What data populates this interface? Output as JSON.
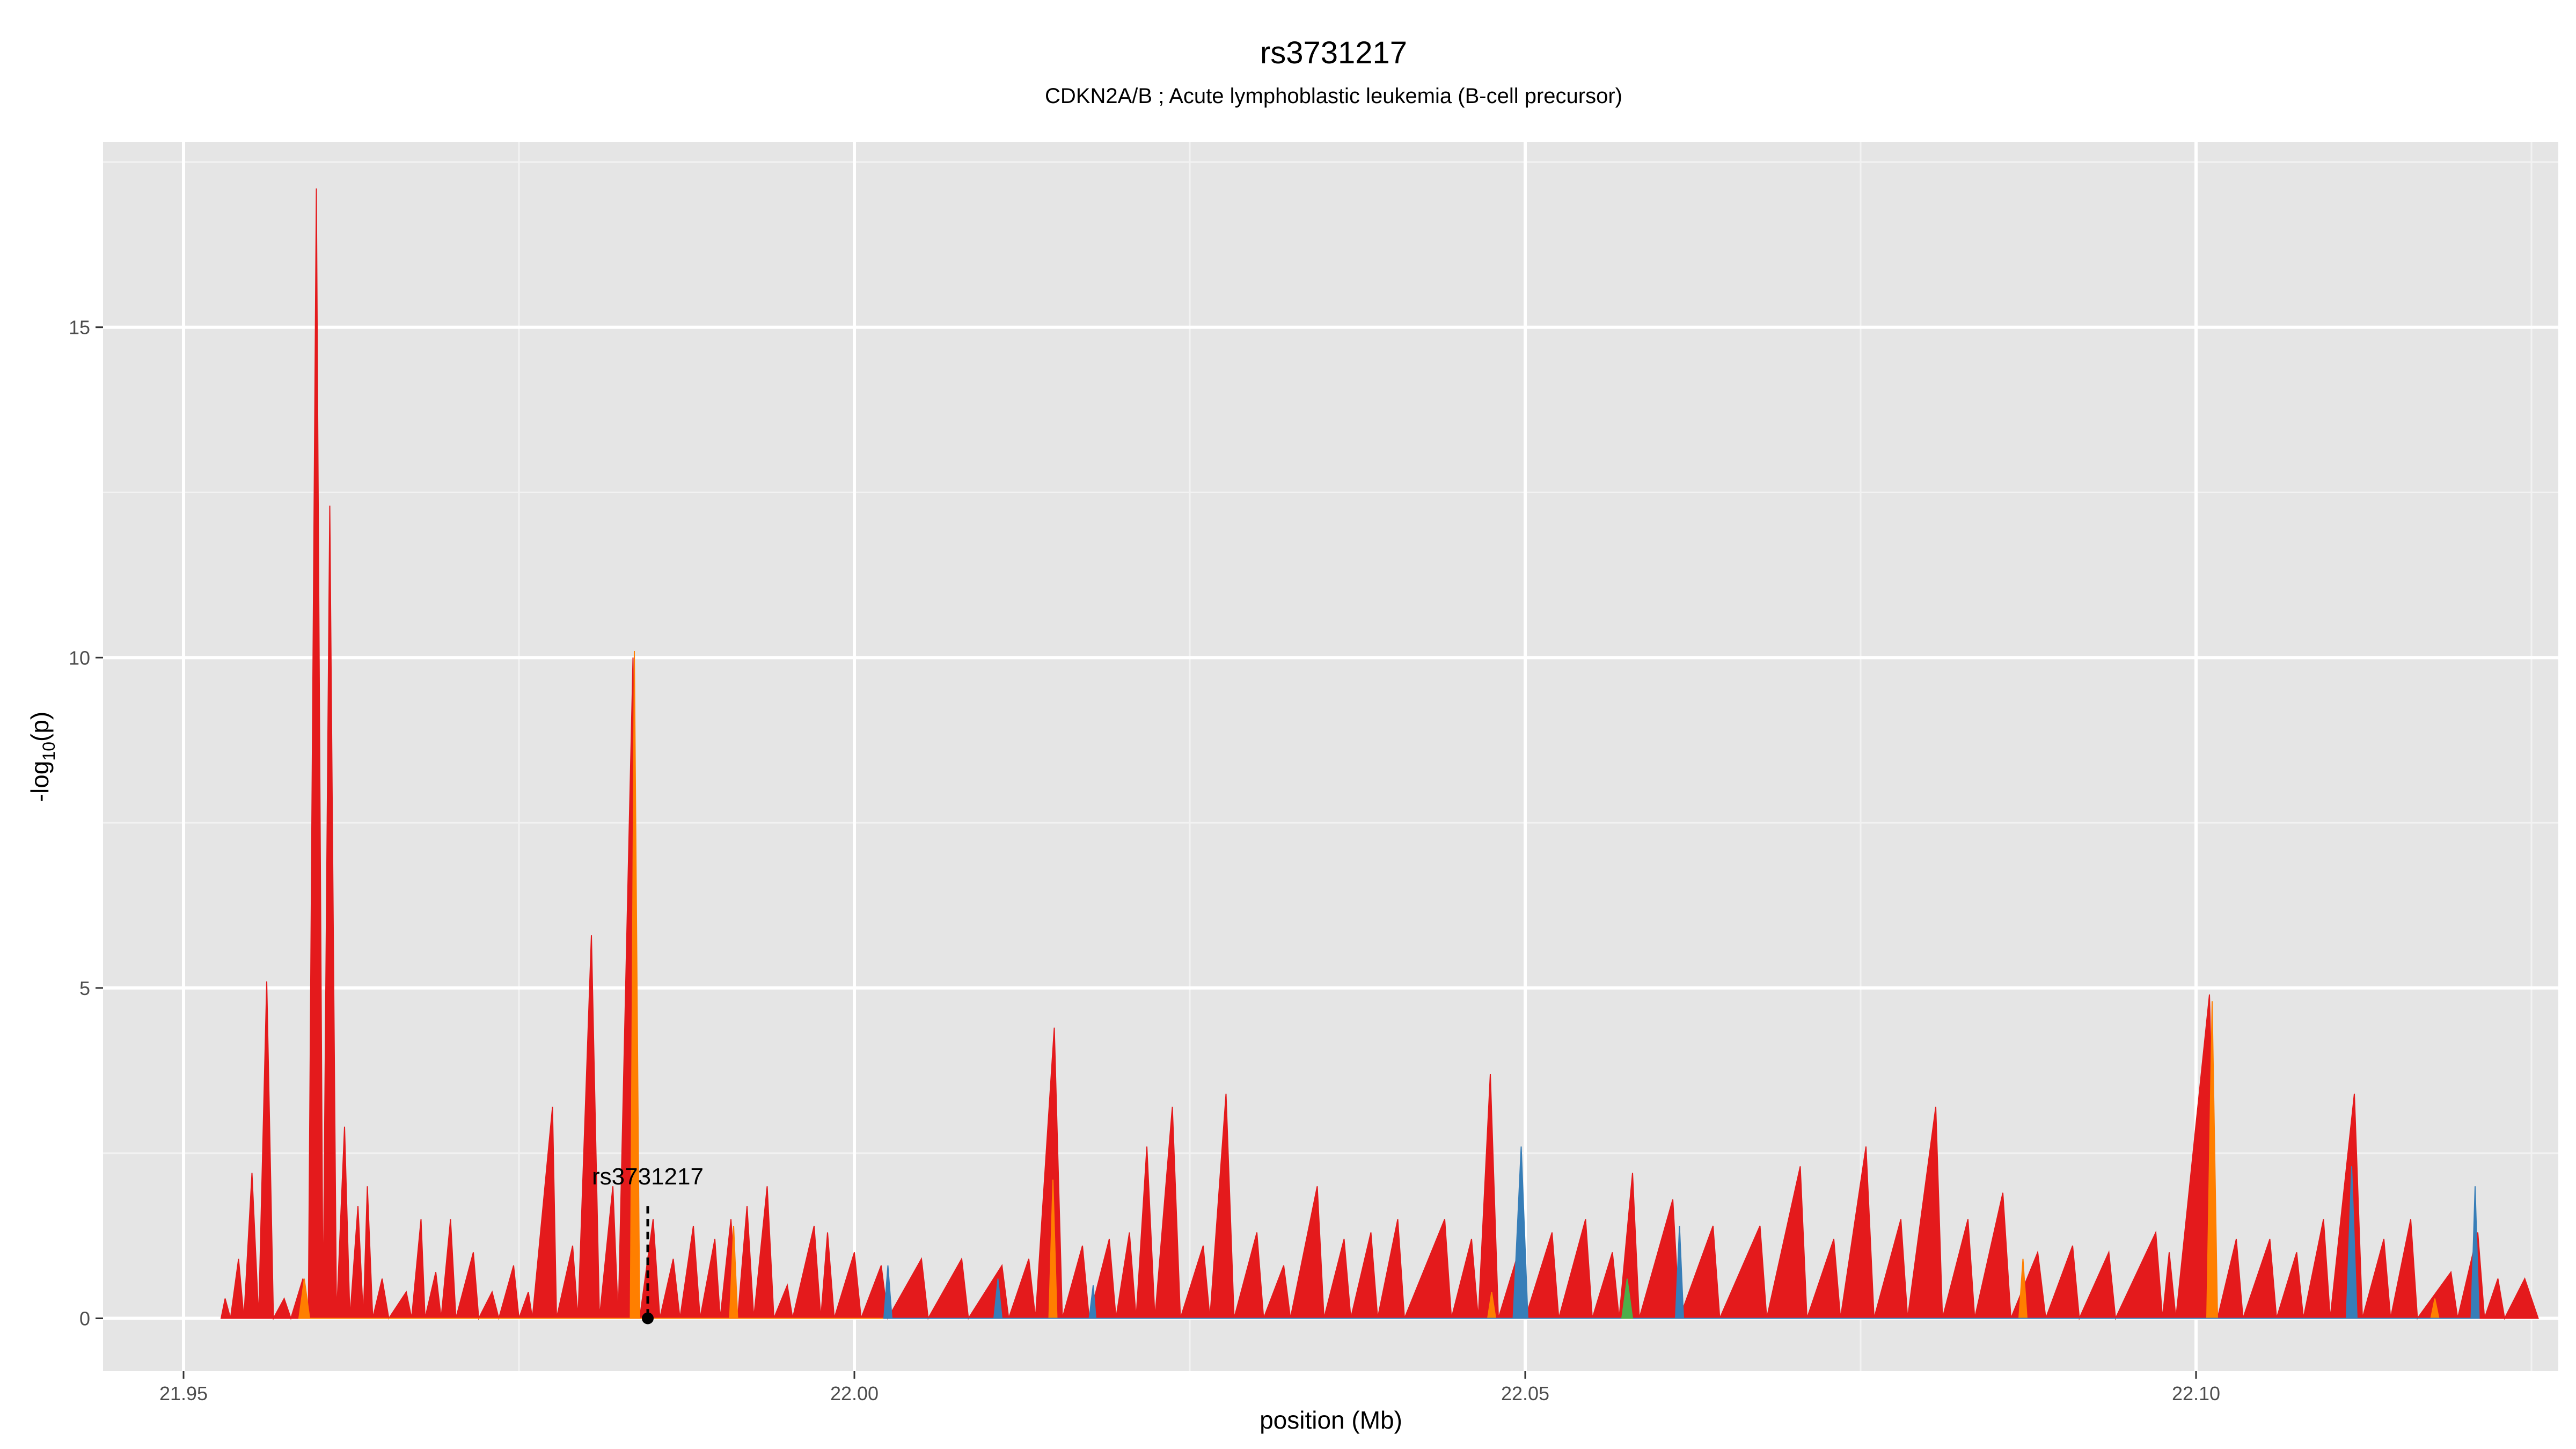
{
  "chart_data": {
    "type": "area",
    "title": "rs3731217",
    "subtitle": "CDKN2A/B ; Acute lymphoblastic leukemia (B-cell precursor)",
    "xlabel": "position (Mb)",
    "ylabel_main": "-log",
    "ylabel_sub": "10",
    "ylabel_tail": "(p)",
    "xlim": [
      21.944,
      22.127
    ],
    "ylim": [
      -0.8,
      17.8
    ],
    "x_ticks": [
      21.95,
      22.0,
      22.05,
      22.1
    ],
    "x_tick_labels": [
      "21.95",
      "22.00",
      "22.05",
      "22.10"
    ],
    "y_ticks": [
      0,
      5,
      10,
      15
    ],
    "y_tick_labels": [
      "0",
      "5",
      "10",
      "15"
    ],
    "grid": true,
    "panel_background": "#e5e5e5",
    "colors": {
      "red": "#e41a1c",
      "orange": "#ff7f00",
      "blue": "#377eb8",
      "green": "#4daf4a",
      "yellow": "#ffd92f"
    },
    "annotation": {
      "label": "rs3731217",
      "x": 21.9846,
      "y": 0,
      "line_top": 1.7
    },
    "series": [
      {
        "color_key": "red",
        "points": [
          [
            21.9528,
            0
          ],
          [
            21.9531,
            0.3
          ],
          [
            21.9535,
            0
          ],
          [
            21.9541,
            0.9
          ],
          [
            21.9545,
            0
          ],
          [
            21.9551,
            2.2
          ],
          [
            21.9556,
            0
          ],
          [
            21.9562,
            5.1
          ],
          [
            21.9567,
            0
          ],
          [
            21.9575,
            0.3
          ],
          [
            21.958,
            0
          ],
          [
            21.9589,
            0.6
          ],
          [
            21.9593,
            0
          ],
          [
            21.9599,
            17.1
          ],
          [
            21.9604,
            0
          ],
          [
            21.9609,
            12.3
          ],
          [
            21.9614,
            0
          ],
          [
            21.962,
            2.9
          ],
          [
            21.9624,
            0
          ],
          [
            21.963,
            1.7
          ],
          [
            21.9634,
            0
          ],
          [
            21.9637,
            2.0
          ],
          [
            21.9641,
            0
          ],
          [
            21.9648,
            0.6
          ],
          [
            21.9653,
            0
          ],
          [
            21.9666,
            0.4
          ],
          [
            21.967,
            0
          ],
          [
            21.9677,
            1.5
          ],
          [
            21.968,
            0
          ],
          [
            21.9688,
            0.7
          ],
          [
            21.9692,
            0
          ],
          [
            21.9699,
            1.5
          ],
          [
            21.9703,
            0
          ],
          [
            21.9716,
            1.0
          ],
          [
            21.972,
            0
          ],
          [
            21.973,
            0.4
          ],
          [
            21.9735,
            0
          ],
          [
            21.9746,
            0.8
          ],
          [
            21.975,
            0
          ],
          [
            21.9757,
            0.4
          ],
          [
            21.976,
            0
          ],
          [
            21.9775,
            3.2
          ],
          [
            21.9778,
            0
          ],
          [
            21.979,
            1.1
          ],
          [
            21.9794,
            0
          ],
          [
            21.9804,
            5.8
          ],
          [
            21.981,
            0
          ],
          [
            21.982,
            2.0
          ],
          [
            21.9824,
            0
          ],
          [
            21.9835,
            10.0
          ],
          [
            21.984,
            0
          ],
          [
            21.985,
            1.5
          ],
          [
            21.9855,
            0
          ],
          [
            21.9865,
            0.9
          ],
          [
            21.987,
            0
          ],
          [
            21.988,
            1.4
          ],
          [
            21.9885,
            0
          ],
          [
            21.9896,
            1.2
          ],
          [
            21.99,
            0
          ],
          [
            21.9908,
            1.5
          ],
          [
            21.9913,
            0
          ],
          [
            21.992,
            1.7
          ],
          [
            21.9925,
            0
          ],
          [
            21.9935,
            2.0
          ],
          [
            21.994,
            0
          ],
          [
            21.995,
            0.5
          ],
          [
            21.9954,
            0
          ],
          [
            21.997,
            1.4
          ],
          [
            21.9975,
            0
          ],
          [
            21.998,
            1.3
          ],
          [
            21.9985,
            0
          ],
          [
            22.0,
            1.0
          ],
          [
            22.0005,
            0
          ],
          [
            22.002,
            0.8
          ],
          [
            22.0025,
            0
          ],
          [
            22.005,
            0.9
          ],
          [
            22.0055,
            0
          ],
          [
            22.008,
            0.9
          ],
          [
            22.0085,
            0
          ],
          [
            22.011,
            0.8
          ],
          [
            22.0115,
            0
          ],
          [
            22.013,
            0.9
          ],
          [
            22.0135,
            0
          ],
          [
            22.0149,
            4.4
          ],
          [
            22.0155,
            0
          ],
          [
            22.017,
            1.1
          ],
          [
            22.0175,
            0
          ],
          [
            22.019,
            1.2
          ],
          [
            22.0195,
            0
          ],
          [
            22.0205,
            1.3
          ],
          [
            22.021,
            0
          ],
          [
            22.0218,
            2.6
          ],
          [
            22.0224,
            0
          ],
          [
            22.0237,
            3.2
          ],
          [
            22.0243,
            0
          ],
          [
            22.026,
            1.1
          ],
          [
            22.0265,
            0
          ],
          [
            22.0277,
            3.4
          ],
          [
            22.0283,
            0
          ],
          [
            22.03,
            1.3
          ],
          [
            22.0305,
            0
          ],
          [
            22.032,
            0.8
          ],
          [
            22.0325,
            0
          ],
          [
            22.0345,
            2.0
          ],
          [
            22.035,
            0
          ],
          [
            22.0365,
            1.2
          ],
          [
            22.037,
            0
          ],
          [
            22.0385,
            1.3
          ],
          [
            22.039,
            0
          ],
          [
            22.0405,
            1.5
          ],
          [
            22.041,
            0
          ],
          [
            22.044,
            1.5
          ],
          [
            22.0445,
            0
          ],
          [
            22.046,
            1.2
          ],
          [
            22.0465,
            0
          ],
          [
            22.0474,
            3.7
          ],
          [
            22.048,
            0
          ],
          [
            22.0495,
            1.0
          ],
          [
            22.05,
            0
          ],
          [
            22.052,
            1.3
          ],
          [
            22.0525,
            0
          ],
          [
            22.0545,
            1.5
          ],
          [
            22.055,
            0
          ],
          [
            22.0565,
            1.0
          ],
          [
            22.057,
            0
          ],
          [
            22.058,
            2.2
          ],
          [
            22.0585,
            0
          ],
          [
            22.061,
            1.8
          ],
          [
            22.0615,
            0
          ],
          [
            22.064,
            1.4
          ],
          [
            22.0645,
            0
          ],
          [
            22.0675,
            1.4
          ],
          [
            22.068,
            0
          ],
          [
            22.0705,
            2.3
          ],
          [
            22.071,
            0
          ],
          [
            22.073,
            1.2
          ],
          [
            22.0735,
            0
          ],
          [
            22.0754,
            2.6
          ],
          [
            22.076,
            0
          ],
          [
            22.078,
            1.5
          ],
          [
            22.0785,
            0
          ],
          [
            22.0806,
            3.2
          ],
          [
            22.0811,
            0
          ],
          [
            22.083,
            1.5
          ],
          [
            22.0835,
            0
          ],
          [
            22.0856,
            1.9
          ],
          [
            22.0862,
            0
          ],
          [
            22.0882,
            1.0
          ],
          [
            22.0888,
            0
          ],
          [
            22.0908,
            1.1
          ],
          [
            22.0913,
            0
          ],
          [
            22.0935,
            1.0
          ],
          [
            22.094,
            0
          ],
          [
            22.097,
            1.3
          ],
          [
            22.0975,
            0
          ],
          [
            22.098,
            1.0
          ],
          [
            22.0985,
            0
          ],
          [
            22.101,
            4.9
          ],
          [
            22.1016,
            0
          ],
          [
            22.103,
            1.2
          ],
          [
            22.1035,
            0
          ],
          [
            22.1055,
            1.2
          ],
          [
            22.106,
            0
          ],
          [
            22.1075,
            1.0
          ],
          [
            22.108,
            0
          ],
          [
            22.1095,
            1.5
          ],
          [
            22.11,
            0
          ],
          [
            22.1118,
            3.4
          ],
          [
            22.1124,
            0
          ],
          [
            22.114,
            1.2
          ],
          [
            22.1145,
            0
          ],
          [
            22.116,
            1.5
          ],
          [
            22.1165,
            0
          ],
          [
            22.119,
            0.7
          ],
          [
            22.1195,
            0
          ],
          [
            22.121,
            1.3
          ],
          [
            22.1215,
            0
          ],
          [
            22.1225,
            0.6
          ],
          [
            22.123,
            0
          ],
          [
            22.1245,
            0.6
          ],
          [
            22.1255,
            0
          ]
        ]
      },
      {
        "color_key": "orange",
        "points": [
          [
            21.9586,
            0
          ],
          [
            21.959,
            0.6
          ],
          [
            21.9594,
            0
          ],
          [
            21.9833,
            0
          ],
          [
            21.9836,
            10.1
          ],
          [
            21.984,
            0
          ],
          [
            21.9907,
            0
          ],
          [
            21.991,
            1.4
          ],
          [
            21.9913,
            0
          ],
          [
            22.0145,
            0
          ],
          [
            22.0148,
            2.1
          ],
          [
            22.0151,
            0
          ],
          [
            22.0472,
            0
          ],
          [
            22.0475,
            0.4
          ],
          [
            22.0478,
            0
          ],
          [
            22.0868,
            0
          ],
          [
            22.0871,
            0.9
          ],
          [
            22.0874,
            0
          ],
          [
            22.1008,
            0
          ],
          [
            22.1012,
            4.8
          ],
          [
            22.1016,
            0
          ],
          [
            22.1175,
            0
          ],
          [
            22.1178,
            0.3
          ],
          [
            22.1181,
            0
          ]
        ]
      },
      {
        "color_key": "blue",
        "points": [
          [
            22.0022,
            0
          ],
          [
            22.0025,
            0.8
          ],
          [
            22.0028,
            0
          ],
          [
            22.0104,
            0
          ],
          [
            22.0107,
            0.6
          ],
          [
            22.011,
            0
          ],
          [
            22.0175,
            0
          ],
          [
            22.0178,
            0.5
          ],
          [
            22.018,
            0
          ],
          [
            22.0491,
            0
          ],
          [
            22.0497,
            2.6
          ],
          [
            22.0502,
            0
          ],
          [
            22.0612,
            0
          ],
          [
            22.0615,
            1.4
          ],
          [
            22.0618,
            0
          ],
          [
            22.1112,
            0
          ],
          [
            22.1116,
            2.3
          ],
          [
            22.112,
            0
          ],
          [
            22.1205,
            0
          ],
          [
            22.1208,
            2.0
          ],
          [
            22.1211,
            0
          ]
        ]
      },
      {
        "color_key": "green",
        "points": [
          [
            22.0572,
            0
          ],
          [
            22.0576,
            0.6
          ],
          [
            22.058,
            0
          ]
        ]
      }
    ]
  }
}
